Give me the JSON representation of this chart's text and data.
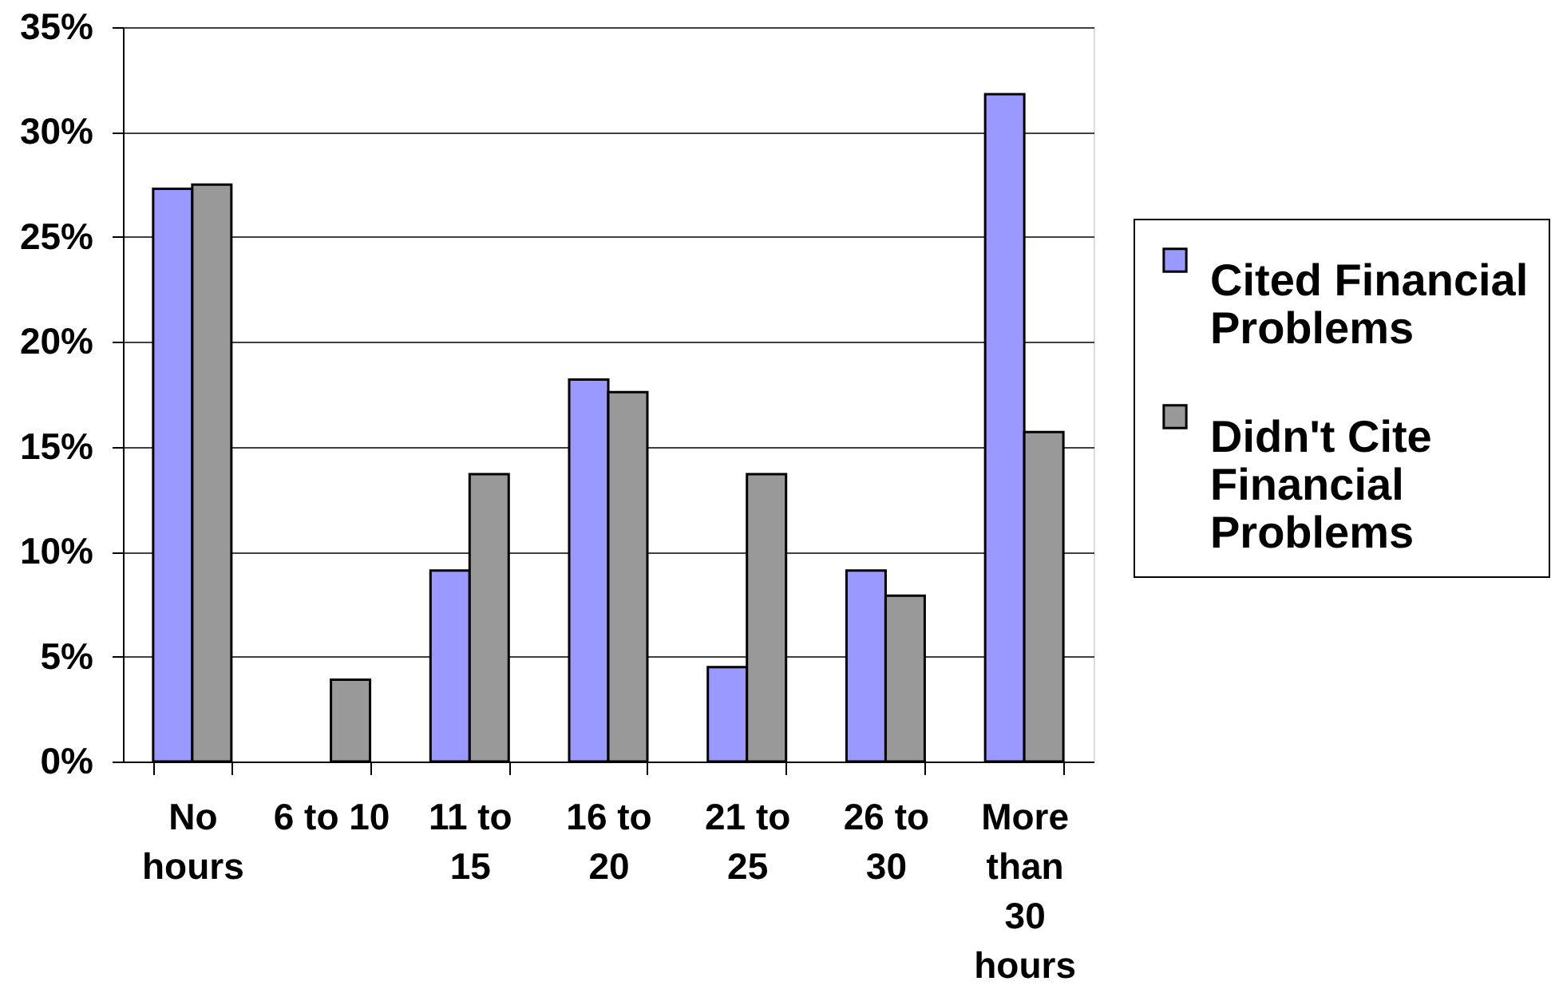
{
  "chart_data": {
    "type": "bar",
    "categories": [
      "No hours",
      "6 to 10",
      "11 to 15",
      "16 to 20",
      "21 to 25",
      "26 to 30",
      "More than 30 hours"
    ],
    "series": [
      {
        "name": "Cited Financial Problems",
        "color": "#9999ff",
        "values": [
          27.3,
          null,
          9.1,
          18.2,
          4.5,
          9.1,
          31.8
        ]
      },
      {
        "name": "Didn't Cite Financial Problems",
        "color": "#999999",
        "values": [
          27.5,
          3.9,
          13.7,
          17.6,
          13.7,
          7.9,
          15.7
        ]
      }
    ],
    "ylim": [
      0,
      35
    ],
    "yticks": [
      {
        "value": 0,
        "label": "0%"
      },
      {
        "value": 5,
        "label": "5%"
      },
      {
        "value": 10,
        "label": "10%"
      },
      {
        "value": 15,
        "label": "15%"
      },
      {
        "value": 20,
        "label": "20%"
      },
      {
        "value": 25,
        "label": "25%"
      },
      {
        "value": 30,
        "label": "30%"
      },
      {
        "value": 35,
        "label": "35%"
      }
    ],
    "grid": "y",
    "legend": "right"
  }
}
